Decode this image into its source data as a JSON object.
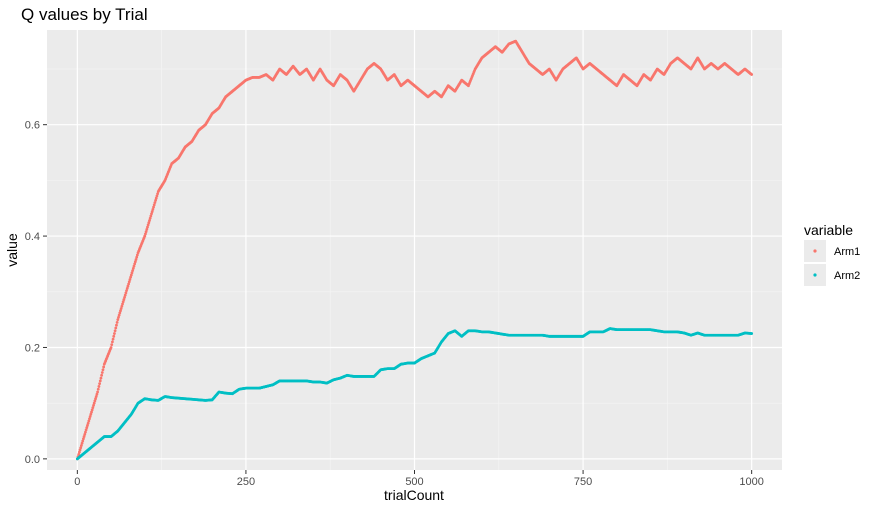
{
  "chart_data": {
    "type": "scatter",
    "title": "Q values by Trial",
    "xlabel": "trialCount",
    "ylabel": "value",
    "xlim": [
      -45,
      1045
    ],
    "ylim": [
      -0.02,
      0.77
    ],
    "x_ticks": [
      0,
      250,
      500,
      750,
      1000
    ],
    "x_tick_labels": [
      "0",
      "250",
      "500",
      "750",
      "1000"
    ],
    "y_ticks": [
      0.0,
      0.2,
      0.4,
      0.6
    ],
    "y_tick_labels": [
      "0.0",
      "0.2",
      "0.4",
      "0.6"
    ],
    "grid": true,
    "legend": {
      "title": "variable",
      "position": "right"
    },
    "series": [
      {
        "name": "Arm1",
        "color": "#F8766D",
        "points": [
          [
            0,
            0.0
          ],
          [
            10,
            0.04
          ],
          [
            20,
            0.08
          ],
          [
            30,
            0.12
          ],
          [
            40,
            0.17
          ],
          [
            50,
            0.2
          ],
          [
            60,
            0.25
          ],
          [
            70,
            0.29
          ],
          [
            80,
            0.33
          ],
          [
            90,
            0.37
          ],
          [
            100,
            0.4
          ],
          [
            110,
            0.44
          ],
          [
            120,
            0.48
          ],
          [
            130,
            0.5
          ],
          [
            140,
            0.53
          ],
          [
            150,
            0.54
          ],
          [
            160,
            0.56
          ],
          [
            170,
            0.57
          ],
          [
            180,
            0.59
          ],
          [
            190,
            0.6
          ],
          [
            200,
            0.62
          ],
          [
            210,
            0.63
          ],
          [
            220,
            0.65
          ],
          [
            230,
            0.66
          ],
          [
            240,
            0.67
          ],
          [
            250,
            0.68
          ],
          [
            260,
            0.685
          ],
          [
            270,
            0.685
          ],
          [
            280,
            0.69
          ],
          [
            290,
            0.68
          ],
          [
            300,
            0.7
          ],
          [
            310,
            0.69
          ],
          [
            320,
            0.705
          ],
          [
            330,
            0.69
          ],
          [
            340,
            0.7
          ],
          [
            350,
            0.68
          ],
          [
            360,
            0.7
          ],
          [
            370,
            0.68
          ],
          [
            380,
            0.67
          ],
          [
            390,
            0.69
          ],
          [
            400,
            0.68
          ],
          [
            410,
            0.66
          ],
          [
            420,
            0.68
          ],
          [
            430,
            0.7
          ],
          [
            440,
            0.71
          ],
          [
            450,
            0.7
          ],
          [
            460,
            0.68
          ],
          [
            470,
            0.69
          ],
          [
            480,
            0.67
          ],
          [
            490,
            0.68
          ],
          [
            500,
            0.67
          ],
          [
            510,
            0.66
          ],
          [
            520,
            0.65
          ],
          [
            530,
            0.66
          ],
          [
            540,
            0.65
          ],
          [
            550,
            0.67
          ],
          [
            560,
            0.66
          ],
          [
            570,
            0.68
          ],
          [
            580,
            0.67
          ],
          [
            590,
            0.7
          ],
          [
            600,
            0.72
          ],
          [
            610,
            0.73
          ],
          [
            620,
            0.74
          ],
          [
            630,
            0.73
          ],
          [
            640,
            0.745
          ],
          [
            650,
            0.75
          ],
          [
            660,
            0.73
          ],
          [
            670,
            0.71
          ],
          [
            680,
            0.7
          ],
          [
            690,
            0.69
          ],
          [
            700,
            0.7
          ],
          [
            710,
            0.68
          ],
          [
            720,
            0.7
          ],
          [
            730,
            0.71
          ],
          [
            740,
            0.72
          ],
          [
            750,
            0.7
          ],
          [
            760,
            0.71
          ],
          [
            770,
            0.7
          ],
          [
            780,
            0.69
          ],
          [
            790,
            0.68
          ],
          [
            800,
            0.67
          ],
          [
            810,
            0.69
          ],
          [
            820,
            0.68
          ],
          [
            830,
            0.67
          ],
          [
            840,
            0.69
          ],
          [
            850,
            0.68
          ],
          [
            860,
            0.7
          ],
          [
            870,
            0.69
          ],
          [
            880,
            0.71
          ],
          [
            890,
            0.72
          ],
          [
            900,
            0.71
          ],
          [
            910,
            0.7
          ],
          [
            920,
            0.72
          ],
          [
            930,
            0.7
          ],
          [
            940,
            0.71
          ],
          [
            950,
            0.7
          ],
          [
            960,
            0.71
          ],
          [
            970,
            0.7
          ],
          [
            980,
            0.69
          ],
          [
            990,
            0.7
          ],
          [
            1000,
            0.69
          ]
        ]
      },
      {
        "name": "Arm2",
        "color": "#00BFC4",
        "points": [
          [
            0,
            0.0
          ],
          [
            10,
            0.01
          ],
          [
            20,
            0.02
          ],
          [
            30,
            0.03
          ],
          [
            40,
            0.04
          ],
          [
            50,
            0.04
          ],
          [
            60,
            0.05
          ],
          [
            70,
            0.065
          ],
          [
            80,
            0.08
          ],
          [
            90,
            0.1
          ],
          [
            100,
            0.108
          ],
          [
            110,
            0.106
          ],
          [
            120,
            0.105
          ],
          [
            130,
            0.112
          ],
          [
            140,
            0.11
          ],
          [
            150,
            0.109
          ],
          [
            160,
            0.108
          ],
          [
            170,
            0.107
          ],
          [
            180,
            0.106
          ],
          [
            190,
            0.105
          ],
          [
            200,
            0.106
          ],
          [
            210,
            0.12
          ],
          [
            220,
            0.118
          ],
          [
            230,
            0.117
          ],
          [
            240,
            0.125
          ],
          [
            250,
            0.127
          ],
          [
            260,
            0.127
          ],
          [
            270,
            0.127
          ],
          [
            280,
            0.13
          ],
          [
            290,
            0.133
          ],
          [
            300,
            0.14
          ],
          [
            310,
            0.14
          ],
          [
            320,
            0.14
          ],
          [
            330,
            0.14
          ],
          [
            340,
            0.14
          ],
          [
            350,
            0.138
          ],
          [
            360,
            0.138
          ],
          [
            370,
            0.136
          ],
          [
            380,
            0.142
          ],
          [
            390,
            0.145
          ],
          [
            400,
            0.15
          ],
          [
            410,
            0.148
          ],
          [
            420,
            0.148
          ],
          [
            430,
            0.148
          ],
          [
            440,
            0.148
          ],
          [
            450,
            0.16
          ],
          [
            460,
            0.162
          ],
          [
            470,
            0.162
          ],
          [
            480,
            0.17
          ],
          [
            490,
            0.172
          ],
          [
            500,
            0.172
          ],
          [
            510,
            0.18
          ],
          [
            520,
            0.185
          ],
          [
            530,
            0.19
          ],
          [
            540,
            0.21
          ],
          [
            550,
            0.225
          ],
          [
            560,
            0.23
          ],
          [
            570,
            0.22
          ],
          [
            580,
            0.23
          ],
          [
            590,
            0.23
          ],
          [
            600,
            0.228
          ],
          [
            610,
            0.228
          ],
          [
            620,
            0.226
          ],
          [
            630,
            0.224
          ],
          [
            640,
            0.222
          ],
          [
            650,
            0.222
          ],
          [
            660,
            0.222
          ],
          [
            670,
            0.222
          ],
          [
            680,
            0.222
          ],
          [
            690,
            0.222
          ],
          [
            700,
            0.22
          ],
          [
            710,
            0.22
          ],
          [
            720,
            0.22
          ],
          [
            730,
            0.22
          ],
          [
            740,
            0.22
          ],
          [
            750,
            0.22
          ],
          [
            760,
            0.228
          ],
          [
            770,
            0.228
          ],
          [
            780,
            0.228
          ],
          [
            790,
            0.234
          ],
          [
            800,
            0.232
          ],
          [
            810,
            0.232
          ],
          [
            820,
            0.232
          ],
          [
            830,
            0.232
          ],
          [
            840,
            0.232
          ],
          [
            850,
            0.232
          ],
          [
            860,
            0.23
          ],
          [
            870,
            0.228
          ],
          [
            880,
            0.228
          ],
          [
            890,
            0.228
          ],
          [
            900,
            0.226
          ],
          [
            910,
            0.222
          ],
          [
            920,
            0.226
          ],
          [
            930,
            0.222
          ],
          [
            940,
            0.222
          ],
          [
            950,
            0.222
          ],
          [
            960,
            0.222
          ],
          [
            970,
            0.222
          ],
          [
            980,
            0.222
          ],
          [
            990,
            0.226
          ],
          [
            1000,
            0.225
          ]
        ]
      }
    ]
  }
}
